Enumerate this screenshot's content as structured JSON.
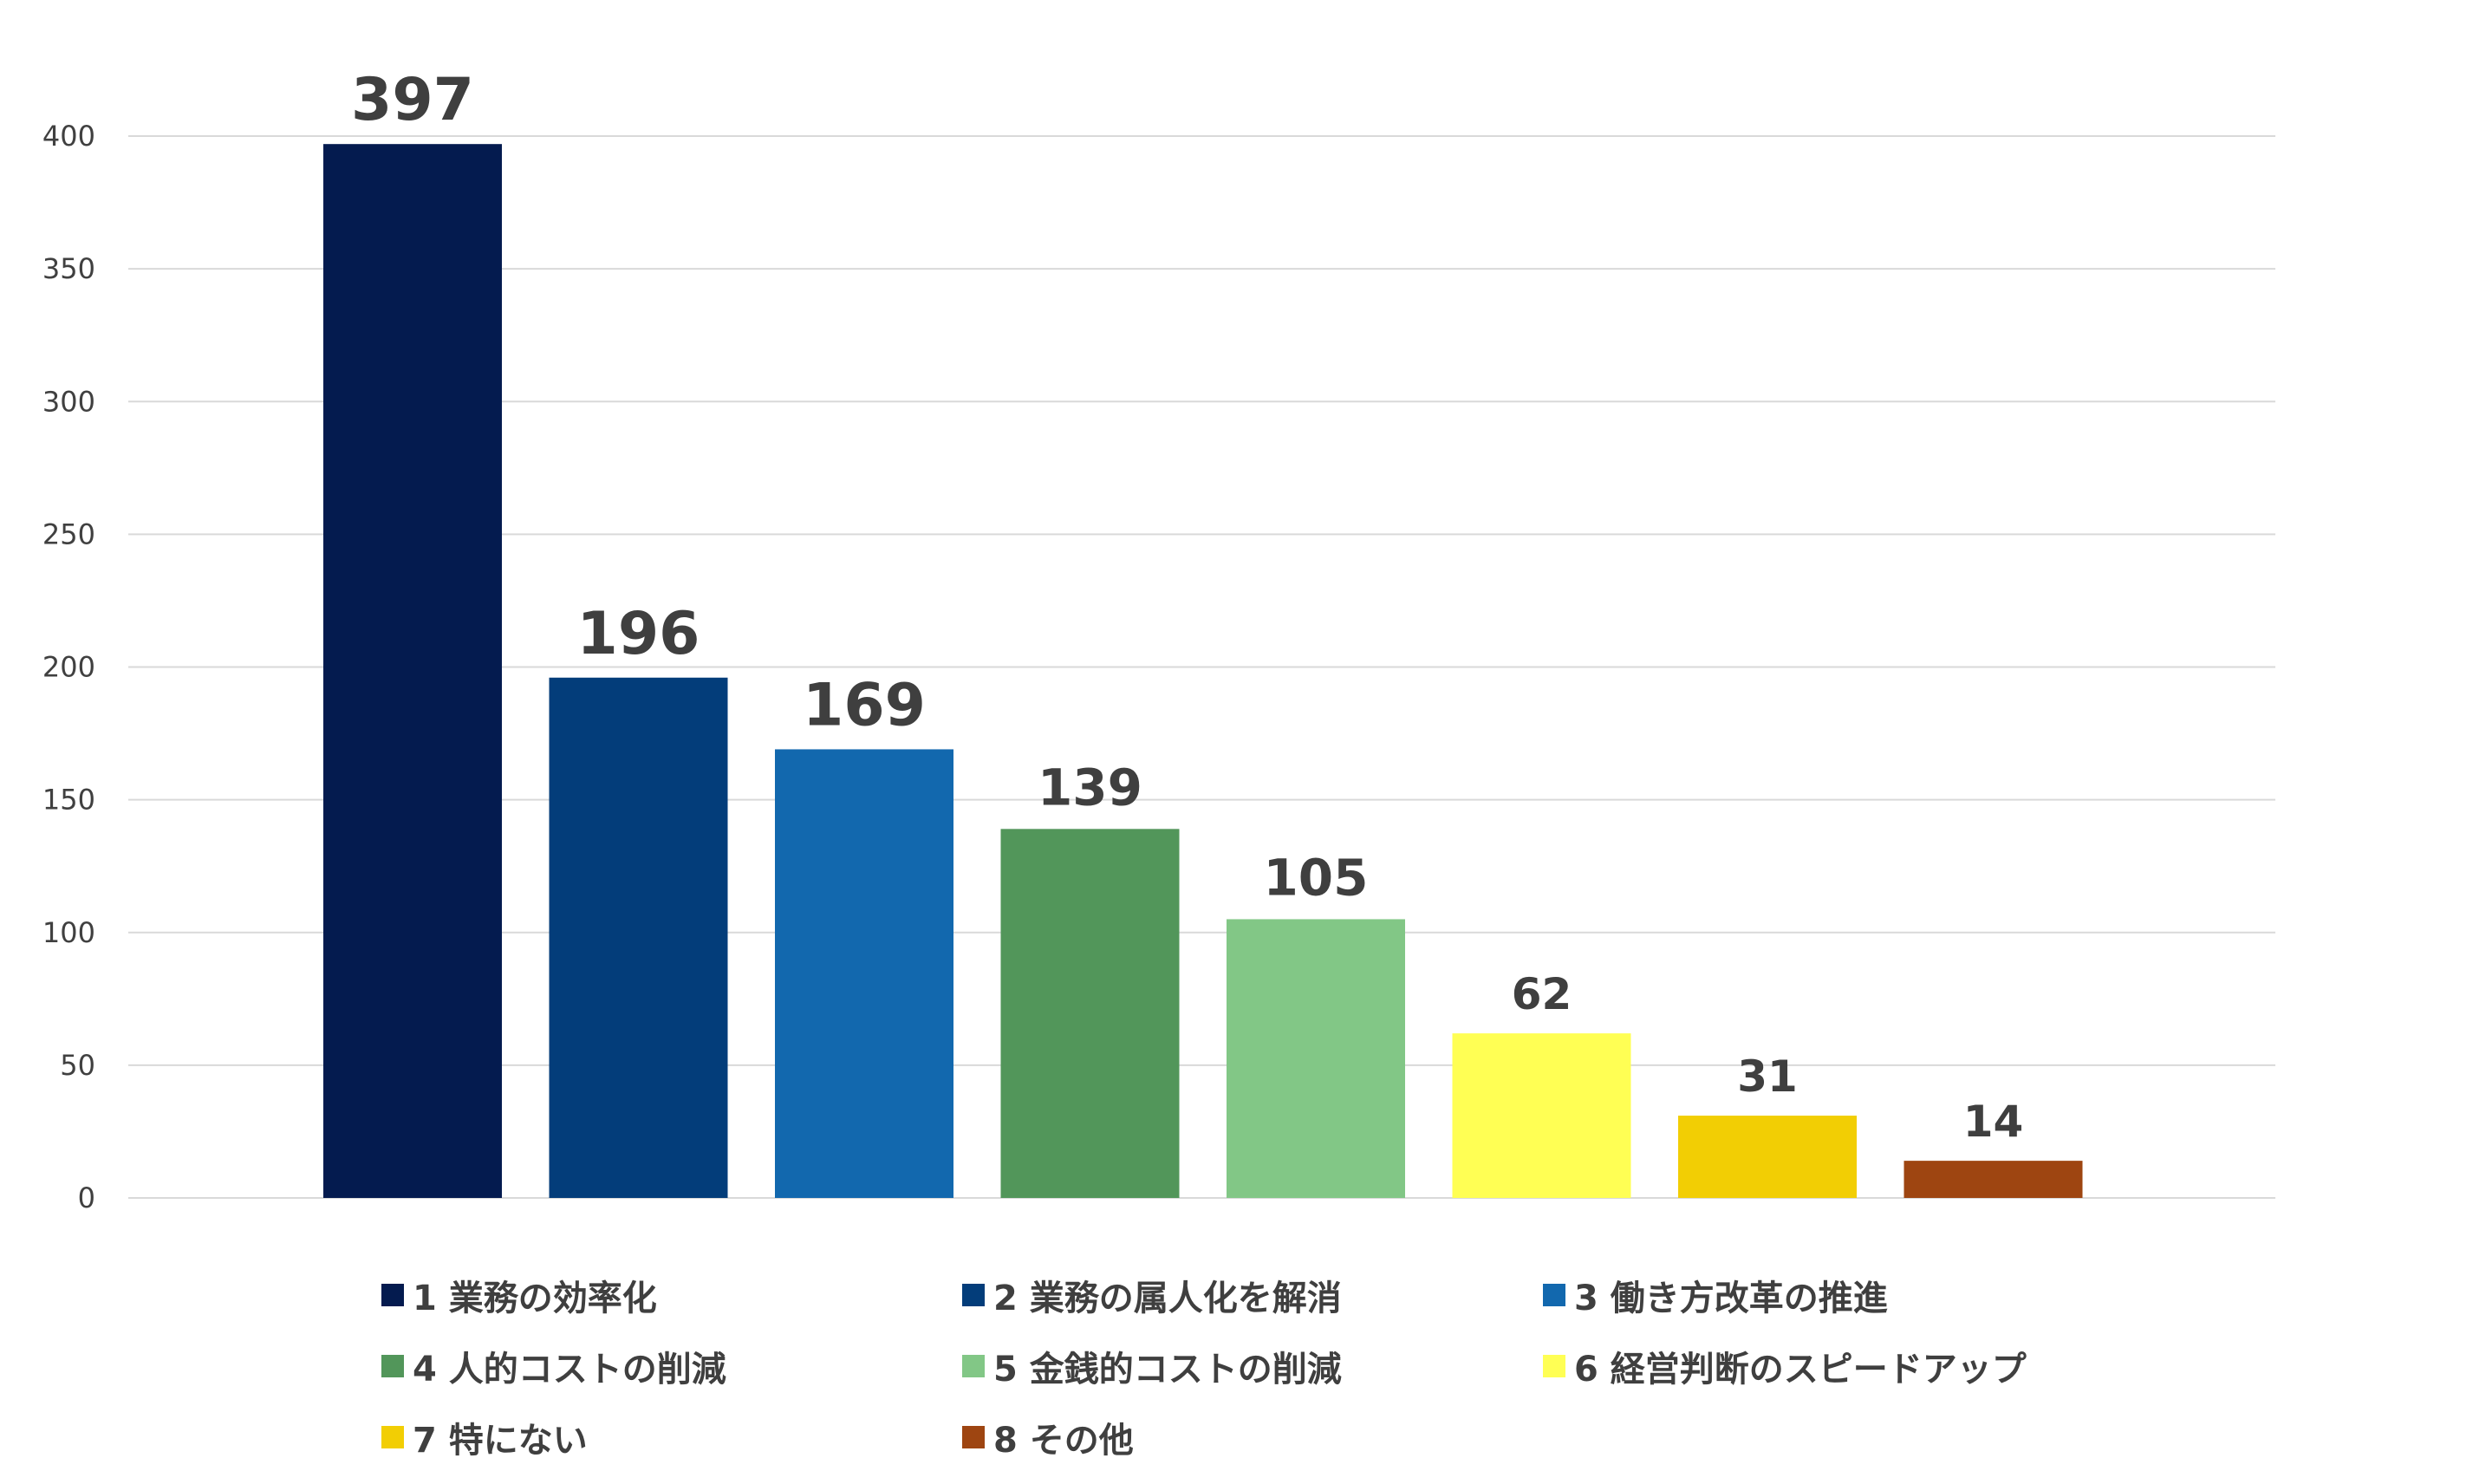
{
  "colors": {
    "gridline": "#d9d9d9",
    "tick_text": "#404040",
    "value_text": "#3f3f3f"
  },
  "chart_data": {
    "type": "bar",
    "title": "",
    "xlabel": "",
    "ylabel": "",
    "ylim": [
      0,
      400
    ],
    "yticks": [
      0,
      50,
      100,
      150,
      200,
      250,
      300,
      350,
      400
    ],
    "grid": true,
    "legend_position": "bottom",
    "categories": [
      "1 業務の効率化",
      "2 業務の属人化を解消",
      "3 働き方改革の推進",
      "4 人的コストの削減",
      "5 金銭的コストの削減",
      "6 経営判断のスピードアップ",
      "7 特にない",
      "8 その他"
    ],
    "values": [
      397,
      196,
      169,
      139,
      105,
      62,
      31,
      14
    ],
    "colors": [
      "#041b4f",
      "#033d7a",
      "#1268ae",
      "#52965a",
      "#82c786",
      "#ffff54",
      "#f2ce04",
      "#9e4511"
    ]
  }
}
